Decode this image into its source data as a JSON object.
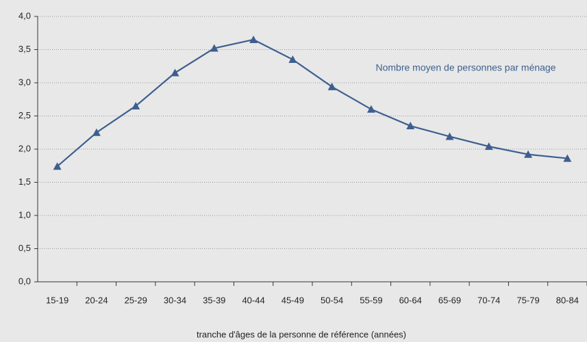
{
  "chart_data": {
    "type": "line",
    "categories": [
      "15-19",
      "20-24",
      "25-29",
      "30-34",
      "35-39",
      "40-44",
      "45-49",
      "50-54",
      "55-59",
      "60-64",
      "65-69",
      "70-74",
      "75-79",
      "80-84"
    ],
    "series": [
      {
        "name": "Nombre moyen de personnes par ménage",
        "color": "#3d5f8f",
        "values": [
          1.74,
          2.25,
          2.65,
          3.15,
          3.52,
          3.65,
          3.35,
          2.94,
          2.6,
          2.35,
          2.19,
          2.04,
          1.92,
          1.86
        ]
      }
    ],
    "x_label": "tranche d'âges de la personne de référence (années)",
    "ylim": [
      0,
      4
    ],
    "yticks": [
      {
        "value": 0,
        "label": "0,0"
      },
      {
        "value": 0.5,
        "label": "0,5"
      },
      {
        "value": 1,
        "label": "1,0"
      },
      {
        "value": 1.5,
        "label": "1,5"
      },
      {
        "value": 2,
        "label": "2,0"
      },
      {
        "value": 2.5,
        "label": "2,5"
      },
      {
        "value": 3,
        "label": "3,0"
      },
      {
        "value": 3.5,
        "label": "3,5"
      },
      {
        "value": 4,
        "label": "4,0"
      }
    ],
    "grid": true
  }
}
